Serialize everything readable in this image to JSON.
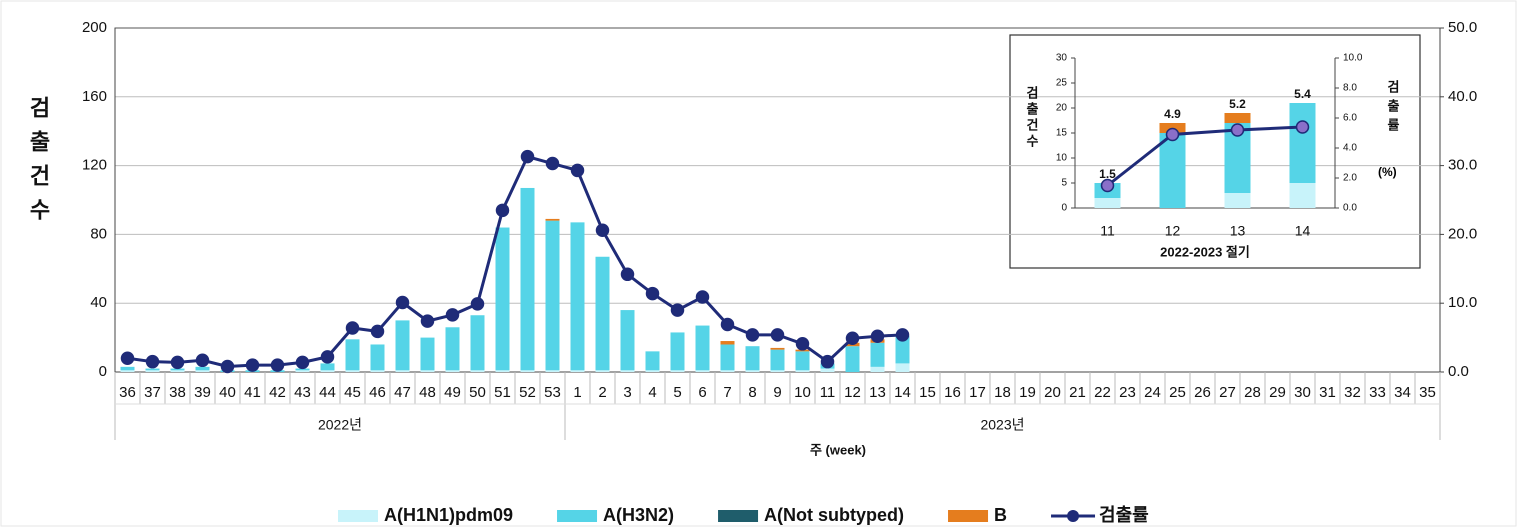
{
  "chart_data": [
    {
      "type": "bar",
      "stacked": true,
      "grid": true,
      "ylabel": "검출건수",
      "xlabel": "주 (week)",
      "year_groups": [
        "2022년",
        "2023년"
      ],
      "categories": [
        "36",
        "37",
        "38",
        "39",
        "40",
        "41",
        "42",
        "43",
        "44",
        "45",
        "46",
        "47",
        "48",
        "49",
        "50",
        "51",
        "52",
        "53",
        "1",
        "2",
        "3",
        "4",
        "5",
        "6",
        "7",
        "8",
        "9",
        "10",
        "11",
        "12",
        "13",
        "14",
        "15",
        "16",
        "17",
        "18",
        "19",
        "20",
        "21",
        "22",
        "23",
        "24",
        "25",
        "26",
        "27",
        "28",
        "29",
        "30",
        "31",
        "32",
        "33",
        "34",
        "35"
      ],
      "ylim": [
        0,
        200
      ],
      "yticks": [
        0,
        40,
        80,
        120,
        160,
        200
      ],
      "y2lim": [
        0,
        50
      ],
      "y2ticks": [
        {
          "value": 0,
          "label": "0.0"
        },
        {
          "value": 10,
          "label": "10.0"
        },
        {
          "value": 20,
          "label": "20.0"
        },
        {
          "value": 30,
          "label": "30.0"
        },
        {
          "value": 40,
          "label": "40.0"
        },
        {
          "value": 50,
          "label": "50.0"
        }
      ],
      "legend": "bottom",
      "series": [
        {
          "name": "A(H1N1)pdm09",
          "color": "#c8f3fa",
          "values": [
            1,
            1,
            1,
            1,
            0,
            0,
            0,
            1,
            1,
            1,
            1,
            1,
            1,
            1,
            1,
            1,
            1,
            1,
            1,
            1,
            1,
            1,
            1,
            1,
            1,
            1,
            1,
            1,
            2,
            0,
            3,
            5,
            null,
            null,
            null,
            null,
            null,
            null,
            null,
            null,
            null,
            null,
            null,
            null,
            null,
            null,
            null,
            null,
            null,
            null,
            null,
            null,
            null
          ]
        },
        {
          "name": "A(H3N2)",
          "color": "#55d4e7",
          "values": [
            2,
            1,
            1,
            2,
            1,
            1,
            1,
            1,
            4,
            18,
            15,
            29,
            19,
            25,
            32,
            83,
            106,
            87,
            86,
            66,
            35,
            11,
            22,
            26,
            15,
            14,
            12,
            11,
            3,
            15,
            14,
            16,
            null,
            null,
            null,
            null,
            null,
            null,
            null,
            null,
            null,
            null,
            null,
            null,
            null,
            null,
            null,
            null,
            null,
            null,
            null,
            null,
            null
          ]
        },
        {
          "name": "A(Not subtyped)",
          "color": "#1f5d6b",
          "values": [
            0,
            0,
            0,
            0,
            0,
            0,
            0,
            0,
            0,
            0,
            0,
            0,
            0,
            0,
            0,
            0,
            0,
            0,
            0,
            0,
            0,
            0,
            0,
            0,
            0,
            0,
            0,
            0,
            0,
            0,
            0,
            0,
            null,
            null,
            null,
            null,
            null,
            null,
            null,
            null,
            null,
            null,
            null,
            null,
            null,
            null,
            null,
            null,
            null,
            null,
            null,
            null,
            null
          ]
        },
        {
          "name": "B",
          "color": "#e57d1e",
          "values": [
            0,
            0,
            0,
            0,
            0,
            0,
            0,
            0,
            0,
            0,
            0,
            0,
            0,
            0,
            0,
            0,
            0,
            1,
            0,
            0,
            0,
            0,
            0,
            0,
            2,
            0,
            1,
            1,
            0,
            2,
            2,
            0,
            null,
            null,
            null,
            null,
            null,
            null,
            null,
            null,
            null,
            null,
            null,
            null,
            null,
            null,
            null,
            null,
            null,
            null,
            null,
            null,
            null
          ]
        },
        {
          "name": "검출률",
          "color": "#1f2b78",
          "type": "line",
          "axis": "y2",
          "values": [
            2.0,
            1.5,
            1.4,
            1.7,
            0.8,
            1.0,
            1.0,
            1.4,
            2.2,
            6.4,
            5.9,
            10.1,
            7.4,
            8.3,
            9.9,
            23.5,
            31.3,
            30.3,
            29.3,
            20.6,
            14.2,
            11.4,
            9.0,
            10.9,
            6.9,
            5.4,
            5.4,
            4.1,
            1.5,
            4.9,
            5.2,
            5.4,
            null,
            null,
            null,
            null,
            null,
            null,
            null,
            null,
            null,
            null,
            null,
            null,
            null,
            null,
            null,
            null,
            null,
            null,
            null,
            null,
            null
          ]
        }
      ]
    },
    {
      "type": "bar",
      "stacked": true,
      "grid": false,
      "ylabel": "검출건수",
      "y2label": "검출률",
      "y2unit": "(%)",
      "xlabel": "2022-2023 절기",
      "categories": [
        "11",
        "12",
        "13",
        "14"
      ],
      "ylim": [
        0,
        30
      ],
      "yticks": [
        0,
        5,
        10,
        15,
        20,
        25,
        30
      ],
      "y2lim": [
        0,
        10
      ],
      "y2ticks": [
        {
          "value": 0,
          "label": "0.0"
        },
        {
          "value": 2,
          "label": "2.0"
        },
        {
          "value": 4,
          "label": "4.0"
        },
        {
          "value": 6,
          "label": "6.0"
        },
        {
          "value": 8,
          "label": "8.0"
        },
        {
          "value": 10,
          "label": "10.0"
        }
      ],
      "series": [
        {
          "color": "#c8f3fa",
          "values": [
            2,
            0,
            3,
            5
          ]
        },
        {
          "color": "#55d4e7",
          "values": [
            3,
            15,
            14,
            16
          ]
        },
        {
          "color": "#1f5d6b",
          "values": [
            0,
            0,
            0,
            0
          ]
        },
        {
          "color": "#e57d1e",
          "values": [
            0,
            2,
            2,
            0
          ]
        },
        {
          "color": "#1f2b78",
          "type": "line",
          "axis": "y2",
          "show_value_labels": true,
          "point_color": "#8a6fc9",
          "values": [
            1.5,
            4.9,
            5.2,
            5.4
          ]
        }
      ]
    }
  ]
}
